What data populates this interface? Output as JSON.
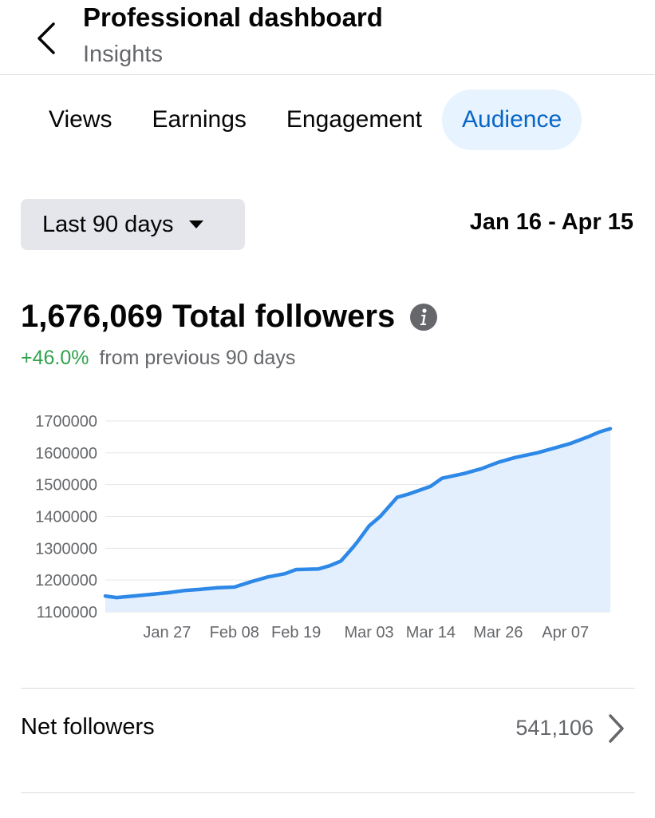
{
  "header": {
    "title": "Professional dashboard",
    "subtitle": "Insights"
  },
  "tabs": [
    {
      "label": "Views",
      "active": false
    },
    {
      "label": "Earnings",
      "active": false
    },
    {
      "label": "Engagement",
      "active": false
    },
    {
      "label": "Audience",
      "active": true
    }
  ],
  "filter": {
    "range_label": "Last 90 days",
    "date_range": "Jan 16 - Apr 15"
  },
  "summary": {
    "total_value": "1,676,069",
    "total_label": "Total followers",
    "change_pct": "+46.0%",
    "change_text": "from previous 90 days"
  },
  "net_followers": {
    "label": "Net followers",
    "value": "541,106"
  },
  "colors": {
    "accent": "#0866c7",
    "line": "#2d88e7",
    "area_fill": "#e3effc",
    "positive": "#31a24c"
  },
  "icons": [
    "back-arrow-icon",
    "caret-down-icon",
    "info-icon",
    "chevron-right-icon"
  ],
  "chart_data": {
    "type": "area",
    "title": "",
    "xlabel": "",
    "ylabel": "",
    "x_ticks": [
      "Jan 27",
      "Feb 08",
      "Feb 19",
      "Mar 03",
      "Mar 14",
      "Mar 26",
      "Apr 07"
    ],
    "y_ticks": [
      1100000,
      1200000,
      1300000,
      1400000,
      1500000,
      1600000,
      1700000
    ],
    "ylim": [
      1100000,
      1700000
    ],
    "x": [
      "Jan 16",
      "Jan 18",
      "Jan 21",
      "Jan 24",
      "Jan 27",
      "Jan 30",
      "Feb 02",
      "Feb 05",
      "Feb 08",
      "Feb 11",
      "Feb 14",
      "Feb 17",
      "Feb 19",
      "Feb 23",
      "Feb 25",
      "Feb 27",
      "Feb 29",
      "Mar 01",
      "Mar 03",
      "Mar 05",
      "Mar 07",
      "Mar 08",
      "Mar 10",
      "Mar 14",
      "Mar 16",
      "Mar 20",
      "Mar 23",
      "Mar 26",
      "Mar 29",
      "Apr 02",
      "Apr 05",
      "Apr 08",
      "Apr 11",
      "Apr 13",
      "Apr 15"
    ],
    "series": [
      {
        "values": [
          1150000,
          1145000,
          1150000,
          1155000,
          1160000,
          1167000,
          1171000,
          1176000,
          1178000,
          1195000,
          1210000,
          1220000,
          1233000,
          1235000,
          1245000,
          1260000,
          1300000,
          1322000,
          1370000,
          1400000,
          1440000,
          1460000,
          1470000,
          1495000,
          1520000,
          1535000,
          1550000,
          1570000,
          1585000,
          1600000,
          1615000,
          1630000,
          1650000,
          1665000,
          1676000
        ]
      }
    ],
    "grid": true
  }
}
